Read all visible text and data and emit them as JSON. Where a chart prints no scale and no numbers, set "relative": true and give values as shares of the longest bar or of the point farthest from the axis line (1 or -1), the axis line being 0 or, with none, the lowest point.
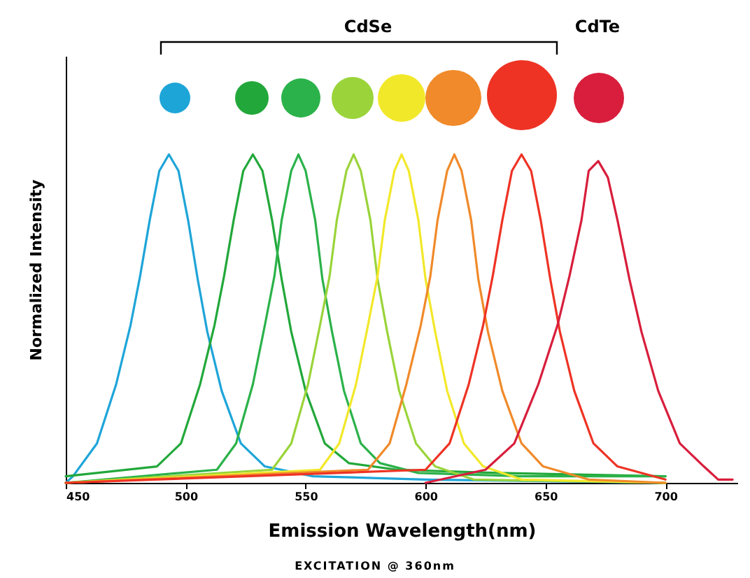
{
  "chart_data": {
    "type": "line",
    "relative": true,
    "xlabel": "Emission Wavelength(nm)",
    "ylabel": "Normalized Intensity",
    "annotations": [
      "CdSe",
      "CdTe",
      "EXCITATION @ 360nm"
    ],
    "xlim": [
      450,
      730
    ],
    "xticks": [
      450,
      500,
      550,
      600,
      650,
      700
    ],
    "tick_labels": "x",
    "grid": false,
    "legend": false,
    "line_style": "solid",
    "marker": "none",
    "series": [
      {
        "color": "#1ea5d8",
        "x": [
          450,
          453,
          463,
          471,
          477,
          481,
          485,
          489,
          493,
          497,
          501,
          505,
          509,
          515,
          523,
          533,
          553,
          600,
          700
        ],
        "values": [
          0,
          0.02,
          0.12,
          0.3,
          0.48,
          0.63,
          0.8,
          0.95,
          1,
          0.95,
          0.8,
          0.62,
          0.46,
          0.28,
          0.12,
          0.05,
          0.02,
          0.01,
          0
        ]
      },
      {
        "color": "#22a83a",
        "x": [
          450,
          488,
          498,
          506,
          512,
          516,
          520,
          524,
          528,
          532,
          536,
          540,
          544,
          550,
          558,
          568,
          588,
          630,
          700
        ],
        "values": [
          0.02,
          0.05,
          0.12,
          0.3,
          0.48,
          0.63,
          0.8,
          0.95,
          1,
          0.95,
          0.8,
          0.62,
          0.46,
          0.28,
          0.12,
          0.06,
          0.04,
          0.03,
          0.02
        ]
      },
      {
        "color": "#2bb24a",
        "x": [
          450,
          513,
          521,
          528,
          533,
          537,
          540,
          544,
          547,
          550,
          554,
          557,
          561,
          566,
          573,
          581,
          597,
          640,
          700
        ],
        "values": [
          0,
          0.04,
          0.12,
          0.3,
          0.48,
          0.63,
          0.8,
          0.95,
          1,
          0.95,
          0.8,
          0.62,
          0.46,
          0.28,
          0.12,
          0.06,
          0.03,
          0.02,
          0.02
        ]
      },
      {
        "color": "#9ad43a",
        "x": [
          450,
          536,
          544,
          551,
          556,
          560,
          563,
          567,
          570,
          573,
          577,
          580,
          584,
          589,
          596,
          604,
          620,
          700
        ],
        "values": [
          0,
          0.04,
          0.12,
          0.3,
          0.48,
          0.63,
          0.8,
          0.95,
          1,
          0.95,
          0.8,
          0.62,
          0.46,
          0.28,
          0.12,
          0.05,
          0.01,
          0
        ]
      },
      {
        "color": "#f2e82a",
        "x": [
          450,
          556,
          564,
          571,
          576,
          580,
          583,
          587,
          590,
          593,
          597,
          600,
          604,
          609,
          616,
          624,
          640,
          700
        ],
        "values": [
          0,
          0.04,
          0.12,
          0.3,
          0.48,
          0.63,
          0.8,
          0.95,
          1,
          0.95,
          0.8,
          0.62,
          0.46,
          0.28,
          0.12,
          0.05,
          0.01,
          0
        ]
      },
      {
        "color": "#f08a2a",
        "x": [
          450,
          576,
          585,
          592,
          598,
          602,
          605,
          609,
          612,
          615,
          619,
          622,
          626,
          632,
          640,
          649,
          668,
          700
        ],
        "values": [
          0,
          0.04,
          0.12,
          0.3,
          0.48,
          0.63,
          0.8,
          0.95,
          1,
          0.95,
          0.8,
          0.62,
          0.46,
          0.28,
          0.12,
          0.05,
          0.01,
          0
        ]
      },
      {
        "color": "#ee3324",
        "x": [
          450,
          600,
          610,
          618,
          624,
          628,
          632,
          636,
          640,
          644,
          648,
          652,
          656,
          662,
          670,
          680,
          700
        ],
        "values": [
          0,
          0.04,
          0.12,
          0.3,
          0.48,
          0.63,
          0.8,
          0.95,
          1,
          0.95,
          0.8,
          0.62,
          0.46,
          0.28,
          0.12,
          0.05,
          0.01
        ]
      },
      {
        "color": "#d81e3c",
        "x": [
          600,
          625,
          637,
          647,
          655,
          660,
          665,
          668,
          672,
          676,
          680,
          685,
          690,
          697,
          706,
          716,
          722,
          728
        ],
        "values": [
          0,
          0.04,
          0.12,
          0.3,
          0.48,
          0.63,
          0.8,
          0.95,
          0.98,
          0.93,
          0.8,
          0.62,
          0.46,
          0.28,
          0.12,
          0.05,
          0.01,
          0.01
        ]
      }
    ]
  }
}
